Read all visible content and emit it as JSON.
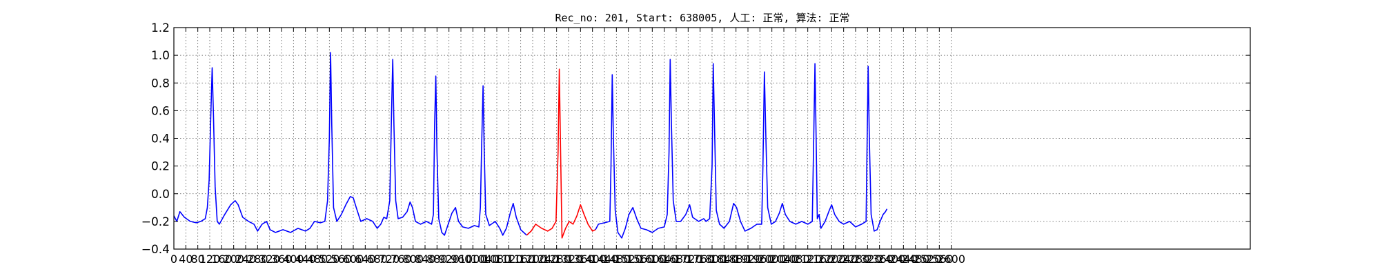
{
  "chart_data": {
    "type": "line",
    "title": "Rec_no: 201, Start: 638005, 人工: 正常, 算法: 正常",
    "xlabel": "",
    "ylabel": "",
    "xlim": [
      0,
      3600
    ],
    "ylim": [
      -0.4,
      1.2
    ],
    "yticks": [
      "−0.4",
      "−0.2",
      "0.0",
      "0.2",
      "0.4",
      "0.6",
      "0.8",
      "1.0",
      "1.2"
    ],
    "xtick_values": [
      0,
      40,
      80,
      120,
      160,
      200,
      240,
      280,
      320,
      360,
      400,
      440,
      480,
      520,
      560,
      600,
      640,
      680,
      720,
      760,
      800,
      840,
      880,
      920,
      960,
      1000,
      1040,
      1080,
      1120,
      1160,
      1200,
      1240,
      1280,
      1320,
      1360,
      1400,
      1440,
      1480,
      1520,
      1560,
      1600,
      1640,
      1680,
      1720,
      1760,
      1800,
      1840,
      1880,
      1920,
      1960,
      2000,
      2040,
      2080,
      2120,
      2160,
      2200,
      2240,
      2280,
      2320,
      2360,
      2400,
      2440,
      2480,
      2520,
      2560,
      2600
    ],
    "xticks": [
      "0",
      "40",
      "80",
      "120",
      "160",
      "200",
      "240",
      "280",
      "320",
      "360",
      "400",
      "440",
      "480",
      "520",
      "560",
      "600",
      "640",
      "680",
      "720",
      "760",
      "800",
      "840",
      "880",
      "920",
      "960",
      "1000",
      "1040",
      "1080",
      "1120",
      "1160",
      "1200",
      "1240",
      "1280",
      "1320",
      "1360",
      "1400",
      "1440",
      "1480",
      "1520",
      "1560",
      "1600",
      "1640",
      "1680",
      "1720",
      "1760",
      "1800",
      "1840",
      "1880",
      "1920",
      "1960",
      "2000",
      "2040",
      "2080",
      "2120",
      "2160",
      "2200",
      "2240",
      "2280",
      "2320",
      "2360",
      "2400",
      "2440",
      "2480",
      "2520",
      "2560",
      "2600"
    ],
    "grid": true,
    "series": [
      {
        "color": "#0000ff",
        "points": [
          [
            0,
            -0.16
          ],
          [
            10,
            -0.2
          ],
          [
            20,
            -0.13
          ],
          [
            35,
            -0.17
          ],
          [
            55,
            -0.2
          ],
          [
            75,
            -0.21
          ],
          [
            90,
            -0.2
          ],
          [
            105,
            -0.18
          ],
          [
            112,
            -0.1
          ],
          [
            118,
            0.1
          ],
          [
            124,
            0.6
          ],
          [
            128,
            0.91
          ],
          [
            132,
            0.6
          ],
          [
            138,
            0.05
          ],
          [
            145,
            -0.2
          ],
          [
            152,
            -0.22
          ],
          [
            170,
            -0.15
          ],
          [
            190,
            -0.08
          ],
          [
            205,
            -0.05
          ],
          [
            215,
            -0.08
          ],
          [
            230,
            -0.17
          ],
          [
            250,
            -0.2
          ],
          [
            268,
            -0.22
          ],
          [
            280,
            -0.27
          ],
          [
            295,
            -0.22
          ],
          [
            310,
            -0.2
          ],
          [
            322,
            -0.26
          ],
          [
            340,
            -0.28
          ],
          [
            365,
            -0.26
          ],
          [
            390,
            -0.28
          ],
          [
            415,
            -0.25
          ],
          [
            440,
            -0.27
          ],
          [
            455,
            -0.25
          ],
          [
            470,
            -0.2
          ],
          [
            490,
            -0.21
          ],
          [
            505,
            -0.2
          ],
          [
            514,
            -0.05
          ],
          [
            520,
            0.4
          ],
          [
            524,
            1.02
          ],
          [
            528,
            0.5
          ],
          [
            534,
            -0.1
          ],
          [
            545,
            -0.2
          ],
          [
            560,
            -0.15
          ],
          [
            575,
            -0.08
          ],
          [
            590,
            -0.02
          ],
          [
            600,
            -0.03
          ],
          [
            610,
            -0.1
          ],
          [
            625,
            -0.2
          ],
          [
            645,
            -0.18
          ],
          [
            665,
            -0.2
          ],
          [
            680,
            -0.25
          ],
          [
            692,
            -0.22
          ],
          [
            702,
            -0.17
          ],
          [
            712,
            -0.18
          ],
          [
            722,
            -0.05
          ],
          [
            728,
            0.6
          ],
          [
            732,
            0.97
          ],
          [
            736,
            0.5
          ],
          [
            742,
            -0.05
          ],
          [
            750,
            -0.18
          ],
          [
            765,
            -0.17
          ],
          [
            780,
            -0.13
          ],
          [
            790,
            -0.06
          ],
          [
            798,
            -0.1
          ],
          [
            808,
            -0.2
          ],
          [
            825,
            -0.22
          ],
          [
            845,
            -0.2
          ],
          [
            862,
            -0.22
          ],
          [
            868,
            -0.15
          ],
          [
            872,
            0.5
          ],
          [
            876,
            0.85
          ],
          [
            880,
            0.3
          ],
          [
            886,
            -0.18
          ],
          [
            896,
            -0.28
          ],
          [
            905,
            -0.3
          ],
          [
            916,
            -0.23
          ],
          [
            930,
            -0.14
          ],
          [
            942,
            -0.1
          ],
          [
            952,
            -0.2
          ],
          [
            966,
            -0.24
          ],
          [
            985,
            -0.25
          ],
          [
            1005,
            -0.23
          ],
          [
            1020,
            -0.24
          ],
          [
            1025,
            -0.1
          ],
          [
            1030,
            0.4
          ],
          [
            1034,
            0.78
          ],
          [
            1038,
            0.3
          ],
          [
            1043,
            -0.15
          ],
          [
            1055,
            -0.23
          ],
          [
            1075,
            -0.2
          ],
          [
            1090,
            -0.25
          ],
          [
            1100,
            -0.3
          ],
          [
            1112,
            -0.25
          ],
          [
            1125,
            -0.14
          ],
          [
            1135,
            -0.07
          ],
          [
            1145,
            -0.17
          ],
          [
            1160,
            -0.26
          ],
          [
            1180,
            -0.3
          ]
        ]
      },
      {
        "color": "#ff0000",
        "points": [
          [
            1180,
            -0.3
          ],
          [
            1195,
            -0.27
          ],
          [
            1210,
            -0.22
          ],
          [
            1230,
            -0.25
          ],
          [
            1250,
            -0.27
          ],
          [
            1265,
            -0.25
          ],
          [
            1278,
            -0.2
          ],
          [
            1285,
            0.3
          ],
          [
            1289,
            0.9
          ],
          [
            1293,
            0.35
          ],
          [
            1298,
            -0.32
          ],
          [
            1310,
            -0.25
          ],
          [
            1322,
            -0.2
          ],
          [
            1335,
            -0.22
          ],
          [
            1348,
            -0.16
          ],
          [
            1360,
            -0.08
          ],
          [
            1372,
            -0.15
          ],
          [
            1385,
            -0.22
          ],
          [
            1400,
            -0.27
          ],
          [
            1410,
            -0.26
          ]
        ]
      },
      {
        "color": "#0000ff",
        "points": [
          [
            1410,
            -0.26
          ],
          [
            1420,
            -0.22
          ],
          [
            1440,
            -0.21
          ],
          [
            1458,
            -0.2
          ],
          [
            1462,
            0.2
          ],
          [
            1466,
            0.86
          ],
          [
            1470,
            0.4
          ],
          [
            1476,
            -0.12
          ],
          [
            1485,
            -0.28
          ],
          [
            1498,
            -0.32
          ],
          [
            1510,
            -0.25
          ],
          [
            1522,
            -0.15
          ],
          [
            1535,
            -0.1
          ],
          [
            1548,
            -0.18
          ],
          [
            1562,
            -0.25
          ],
          [
            1580,
            -0.26
          ],
          [
            1600,
            -0.28
          ],
          [
            1620,
            -0.25
          ],
          [
            1640,
            -0.24
          ],
          [
            1650,
            -0.15
          ],
          [
            1656,
            0.3
          ],
          [
            1660,
            0.97
          ],
          [
            1664,
            0.5
          ],
          [
            1670,
            -0.05
          ],
          [
            1680,
            -0.2
          ],
          [
            1695,
            -0.2
          ],
          [
            1712,
            -0.15
          ],
          [
            1725,
            -0.08
          ],
          [
            1735,
            -0.17
          ],
          [
            1755,
            -0.2
          ],
          [
            1772,
            -0.18
          ],
          [
            1780,
            -0.2
          ],
          [
            1792,
            -0.18
          ],
          [
            1800,
            0.2
          ],
          [
            1804,
            0.94
          ],
          [
            1808,
            0.5
          ],
          [
            1814,
            -0.12
          ],
          [
            1825,
            -0.22
          ],
          [
            1840,
            -0.25
          ],
          [
            1858,
            -0.2
          ],
          [
            1872,
            -0.07
          ],
          [
            1882,
            -0.1
          ],
          [
            1895,
            -0.2
          ],
          [
            1910,
            -0.27
          ],
          [
            1930,
            -0.25
          ],
          [
            1950,
            -0.22
          ],
          [
            1966,
            -0.22
          ],
          [
            1970,
            0.2
          ],
          [
            1975,
            0.88
          ],
          [
            1980,
            0.4
          ],
          [
            1986,
            -0.1
          ],
          [
            1998,
            -0.22
          ],
          [
            2012,
            -0.2
          ],
          [
            2025,
            -0.14
          ],
          [
            2035,
            -0.07
          ],
          [
            2045,
            -0.15
          ],
          [
            2060,
            -0.2
          ],
          [
            2080,
            -0.22
          ],
          [
            2100,
            -0.2
          ],
          [
            2120,
            -0.22
          ],
          [
            2135,
            -0.2
          ],
          [
            2140,
            0.4
          ],
          [
            2144,
            0.94
          ],
          [
            2148,
            0.4
          ],
          [
            2152,
            -0.18
          ],
          [
            2158,
            -0.15
          ],
          [
            2164,
            -0.25
          ],
          [
            2178,
            -0.2
          ],
          [
            2192,
            -0.12
          ],
          [
            2200,
            -0.08
          ],
          [
            2210,
            -0.15
          ],
          [
            2225,
            -0.2
          ],
          [
            2240,
            -0.22
          ],
          [
            2260,
            -0.2
          ],
          [
            2280,
            -0.24
          ],
          [
            2300,
            -0.22
          ],
          [
            2315,
            -0.2
          ],
          [
            2318,
            0.3
          ],
          [
            2322,
            0.92
          ],
          [
            2326,
            0.4
          ],
          [
            2332,
            -0.15
          ],
          [
            2342,
            -0.27
          ],
          [
            2352,
            -0.26
          ],
          [
            2362,
            -0.2
          ],
          [
            2372,
            -0.15
          ],
          [
            2380,
            -0.13
          ],
          [
            2385,
            -0.11
          ]
        ]
      }
    ]
  }
}
